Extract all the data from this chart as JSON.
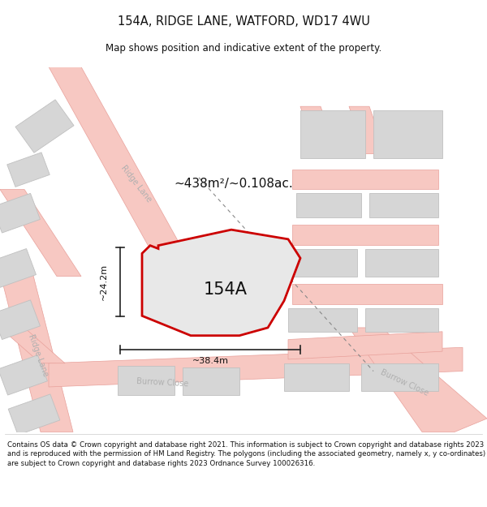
{
  "title": "154A, RIDGE LANE, WATFORD, WD17 4WU",
  "subtitle": "Map shows position and indicative extent of the property.",
  "footer": "Contains OS data © Crown copyright and database right 2021. This information is subject to Crown copyright and database rights 2023 and is reproduced with the permission of HM Land Registry. The polygons (including the associated geometry, namely x, y co-ordinates) are subject to Crown copyright and database rights 2023 Ordnance Survey 100026316.",
  "area_label": "~438m²/~0.108ac.",
  "property_label": "154A",
  "width_label": "~38.4m",
  "height_label": "~24.2m",
  "map_bg": "#efefef",
  "building_fill": "#d6d6d6",
  "building_edge": "#c0c0c0",
  "road_fill": "#f7c8c2",
  "road_edge": "#e8a09a",
  "property_outline_color": "#cc0000",
  "property_fill": "#e8e8e8",
  "dim_line_color": "#222222",
  "road_label_color": "#b0b0b0",
  "dashed_color": "#888888",
  "title_fontsize": 10.5,
  "subtitle_fontsize": 8.5,
  "footer_fontsize": 6.2,
  "area_fontsize": 11,
  "label_fontsize": 15,
  "dim_fontsize": 8
}
